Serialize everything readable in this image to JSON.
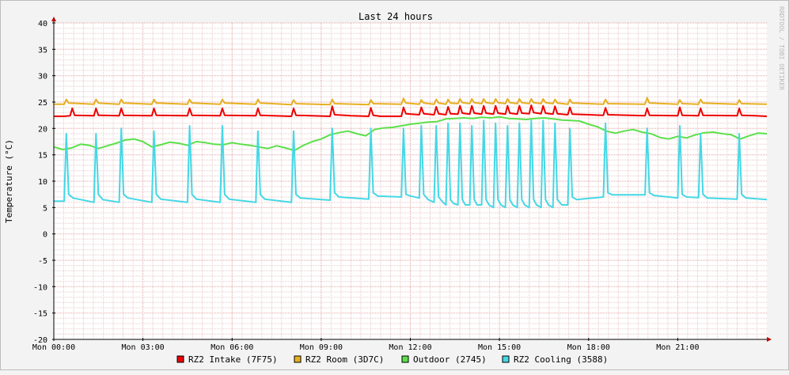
{
  "chart_data": {
    "type": "line",
    "title": "Last 24 hours",
    "ylabel": "Temperature (°C)",
    "xlabel": "",
    "watermark": "RRDTOOL / TOBI OETIKER",
    "ylim": [
      -20,
      40
    ],
    "yticks": [
      40,
      35,
      30,
      25,
      20,
      15,
      10,
      5,
      0,
      -5,
      -10,
      -15,
      -20
    ],
    "xlim": [
      0,
      24
    ],
    "xticks": [
      {
        "hour": 0,
        "label": "Mon 00:00"
      },
      {
        "hour": 3,
        "label": "Mon 03:00"
      },
      {
        "hour": 6,
        "label": "Mon 06:00"
      },
      {
        "hour": 9,
        "label": "Mon 09:00"
      },
      {
        "hour": 12,
        "label": "Mon 12:00"
      },
      {
        "hour": 15,
        "label": "Mon 15:00"
      },
      {
        "hour": 18,
        "label": "Mon 18:00"
      },
      {
        "hour": 21,
        "label": "Mon 21:00"
      }
    ],
    "grid": true,
    "legend_position": "bottom",
    "colors": {
      "background": "#f3f3f3",
      "plot": "#ffffff",
      "minor_grid": "#e8c8c8",
      "major_grid": "#e3a0a0",
      "axis": "#000000",
      "arrow": "#c00000",
      "text": "#000000",
      "watermark": "#b8b8b8"
    },
    "series": [
      {
        "name": "RZ2 Intake (7F75)",
        "color": "#ee0000",
        "x": [
          0,
          0.35,
          0.55,
          0.62,
          0.7,
          1.35,
          1.42,
          1.5,
          2.2,
          2.27,
          2.35,
          3.3,
          3.37,
          3.45,
          4.5,
          4.57,
          4.65,
          5.6,
          5.67,
          5.75,
          6.8,
          6.87,
          6.95,
          8.0,
          8.07,
          8.15,
          9.3,
          9.37,
          9.45,
          10.0,
          10.6,
          10.67,
          10.75,
          11.0,
          11.7,
          11.77,
          11.85,
          12.3,
          12.37,
          12.45,
          12.8,
          12.87,
          12.95,
          13.2,
          13.27,
          13.35,
          13.6,
          13.67,
          13.75,
          14.0,
          14.07,
          14.15,
          14.4,
          14.47,
          14.55,
          14.8,
          14.87,
          14.95,
          15.2,
          15.27,
          15.35,
          15.6,
          15.67,
          15.75,
          16.0,
          16.07,
          16.15,
          16.4,
          16.47,
          16.55,
          16.8,
          16.87,
          16.95,
          17.3,
          17.37,
          17.45,
          18.5,
          18.57,
          18.65,
          19.9,
          19.97,
          20.05,
          21.0,
          21.07,
          21.15,
          21.7,
          21.77,
          21.85,
          23.0,
          23.07,
          23.15,
          23.6,
          24.0
        ],
        "y": [
          22.3,
          22.3,
          22.4,
          23.8,
          22.5,
          22.4,
          23.8,
          22.5,
          22.4,
          23.8,
          22.5,
          22.4,
          23.8,
          22.5,
          22.4,
          23.8,
          22.5,
          22.4,
          23.8,
          22.5,
          22.4,
          23.8,
          22.5,
          22.3,
          23.8,
          22.5,
          22.3,
          24.2,
          22.6,
          22.4,
          22.3,
          23.9,
          22.5,
          22.3,
          22.3,
          24.0,
          22.8,
          22.6,
          24.0,
          22.8,
          22.6,
          24.1,
          22.8,
          22.6,
          24.1,
          22.8,
          22.7,
          24.3,
          22.9,
          22.7,
          24.3,
          22.9,
          22.7,
          24.3,
          22.9,
          22.7,
          24.3,
          22.9,
          22.7,
          24.3,
          22.9,
          22.7,
          24.3,
          22.9,
          22.8,
          24.4,
          23.0,
          22.8,
          24.3,
          22.9,
          22.7,
          24.2,
          22.8,
          22.6,
          24.0,
          22.7,
          22.5,
          23.9,
          22.6,
          22.4,
          23.8,
          22.5,
          22.4,
          24.0,
          22.5,
          22.4,
          23.8,
          22.5,
          22.4,
          23.8,
          22.5,
          22.4,
          22.3
        ]
      },
      {
        "name": "RZ2 Room (3D7C)",
        "color": "#e6b020",
        "x": [
          0,
          0.35,
          0.42,
          0.5,
          1.35,
          1.42,
          1.5,
          2.2,
          2.27,
          2.35,
          3.3,
          3.37,
          3.45,
          4.5,
          4.57,
          4.65,
          5.6,
          5.67,
          5.75,
          6.8,
          6.87,
          6.95,
          8.0,
          8.07,
          8.15,
          9.3,
          9.37,
          9.45,
          10.6,
          10.67,
          10.75,
          11.7,
          11.77,
          11.85,
          12.3,
          12.37,
          12.45,
          12.8,
          12.87,
          12.95,
          13.2,
          13.27,
          13.35,
          13.6,
          13.67,
          13.75,
          14.0,
          14.07,
          14.15,
          14.4,
          14.47,
          14.55,
          14.8,
          14.87,
          14.95,
          15.2,
          15.27,
          15.35,
          15.6,
          15.67,
          15.75,
          16.0,
          16.07,
          16.15,
          16.4,
          16.47,
          16.55,
          16.8,
          16.87,
          16.95,
          17.3,
          17.37,
          17.45,
          18.5,
          18.57,
          18.65,
          19.9,
          19.97,
          20.05,
          21.0,
          21.07,
          21.15,
          21.7,
          21.77,
          21.85,
          23.0,
          23.07,
          23.15,
          24.0
        ],
        "y": [
          24.6,
          24.6,
          25.5,
          24.8,
          24.6,
          25.5,
          24.8,
          24.6,
          25.5,
          24.8,
          24.6,
          25.5,
          24.8,
          24.6,
          25.5,
          24.8,
          24.6,
          25.5,
          24.8,
          24.6,
          25.5,
          24.8,
          24.5,
          25.4,
          24.7,
          24.5,
          25.5,
          24.7,
          24.5,
          25.4,
          24.7,
          24.6,
          25.7,
          24.8,
          24.6,
          25.4,
          24.8,
          24.6,
          25.5,
          24.8,
          24.6,
          25.5,
          24.8,
          24.7,
          25.6,
          24.9,
          24.7,
          25.6,
          24.9,
          24.7,
          25.6,
          24.9,
          24.7,
          25.6,
          24.9,
          24.7,
          25.6,
          24.9,
          24.7,
          25.6,
          24.9,
          24.7,
          25.6,
          24.9,
          24.7,
          25.6,
          24.9,
          24.7,
          25.5,
          24.8,
          24.6,
          25.5,
          24.8,
          24.6,
          25.5,
          24.7,
          24.6,
          25.8,
          24.8,
          24.6,
          25.4,
          24.7,
          24.6,
          25.5,
          24.8,
          24.6,
          25.4,
          24.7,
          24.6
        ]
      },
      {
        "name": "Outdoor (2745)",
        "color": "#5ce04a",
        "x": [
          0,
          0.3,
          0.6,
          0.9,
          1.2,
          1.5,
          1.8,
          2.1,
          2.4,
          2.7,
          3.0,
          3.3,
          3.6,
          3.9,
          4.2,
          4.5,
          4.8,
          5.1,
          5.4,
          5.7,
          6.0,
          6.3,
          6.6,
          6.9,
          7.2,
          7.5,
          7.8,
          8.1,
          8.4,
          8.7,
          9.0,
          9.3,
          9.6,
          9.9,
          10.2,
          10.5,
          10.8,
          11.1,
          11.4,
          11.7,
          12.0,
          12.3,
          12.6,
          12.9,
          13.2,
          13.5,
          13.8,
          14.1,
          14.4,
          14.7,
          15.0,
          15.3,
          15.6,
          15.9,
          16.2,
          16.5,
          16.8,
          17.1,
          17.4,
          17.7,
          18.0,
          18.3,
          18.6,
          18.9,
          19.2,
          19.5,
          19.8,
          20.1,
          20.4,
          20.7,
          21.0,
          21.3,
          21.6,
          21.9,
          22.2,
          22.5,
          22.8,
          23.1,
          23.4,
          23.7,
          24.0
        ],
        "y": [
          16.5,
          16.0,
          16.3,
          17.0,
          16.8,
          16.2,
          16.7,
          17.2,
          17.8,
          18.0,
          17.5,
          16.5,
          16.9,
          17.4,
          17.2,
          16.8,
          17.5,
          17.3,
          17.0,
          16.9,
          17.3,
          17.0,
          16.8,
          16.5,
          16.2,
          16.7,
          16.3,
          15.8,
          16.8,
          17.5,
          18.0,
          18.8,
          19.2,
          19.5,
          19.0,
          18.6,
          19.8,
          20.1,
          20.2,
          20.5,
          20.8,
          21.0,
          21.2,
          21.3,
          21.8,
          21.9,
          22.0,
          21.9,
          22.1,
          22.0,
          22.2,
          21.9,
          21.8,
          21.7,
          21.9,
          22.0,
          21.8,
          21.6,
          21.5,
          21.4,
          20.8,
          20.3,
          19.5,
          19.1,
          19.5,
          19.8,
          19.3,
          19.0,
          18.3,
          18.0,
          18.5,
          18.2,
          18.8,
          19.2,
          19.3,
          19.0,
          18.8,
          18.0,
          18.6,
          19.1,
          19.0
        ]
      },
      {
        "name": "RZ2 Cooling (3588)",
        "color": "#44d8e6",
        "x": [
          0,
          0.35,
          0.42,
          0.5,
          0.65,
          1.35,
          1.42,
          1.5,
          1.65,
          2.2,
          2.27,
          2.35,
          2.5,
          3.3,
          3.37,
          3.45,
          3.6,
          4.5,
          4.57,
          4.65,
          4.8,
          5.6,
          5.67,
          5.75,
          5.9,
          6.8,
          6.87,
          6.95,
          7.1,
          8.0,
          8.07,
          8.15,
          8.3,
          9.3,
          9.37,
          9.45,
          9.6,
          10.6,
          10.67,
          10.75,
          10.9,
          11.7,
          11.77,
          11.85,
          12.0,
          12.3,
          12.37,
          12.45,
          12.6,
          12.8,
          12.87,
          12.95,
          13.1,
          13.2,
          13.27,
          13.35,
          13.45,
          13.6,
          13.67,
          13.75,
          13.85,
          14.0,
          14.07,
          14.15,
          14.25,
          14.4,
          14.47,
          14.55,
          14.65,
          14.8,
          14.87,
          14.95,
          15.05,
          15.2,
          15.27,
          15.35,
          15.45,
          15.6,
          15.67,
          15.75,
          15.85,
          16.0,
          16.07,
          16.15,
          16.25,
          16.4,
          16.47,
          16.55,
          16.65,
          16.8,
          16.87,
          16.95,
          17.1,
          17.3,
          17.37,
          17.45,
          17.6,
          18.5,
          18.57,
          18.65,
          18.8,
          19.9,
          19.97,
          20.05,
          20.2,
          21.0,
          21.07,
          21.15,
          21.3,
          21.7,
          21.77,
          21.85,
          22.0,
          23.0,
          23.07,
          23.15,
          23.3,
          24.0
        ],
        "y": [
          6.2,
          6.2,
          19.0,
          7.5,
          6.8,
          6.0,
          19.0,
          7.5,
          6.5,
          6.0,
          20.0,
          7.5,
          6.8,
          6.0,
          19.5,
          7.5,
          6.6,
          6.0,
          20.5,
          7.5,
          6.6,
          6.0,
          20.5,
          7.5,
          6.6,
          6.0,
          19.5,
          7.5,
          6.6,
          6.0,
          19.5,
          7.5,
          6.8,
          6.4,
          20.0,
          7.8,
          7.0,
          6.6,
          20.0,
          7.8,
          7.2,
          7.0,
          20.0,
          7.5,
          7.2,
          6.8,
          20.5,
          7.5,
          6.5,
          6.0,
          20.5,
          7.0,
          6.0,
          5.5,
          21.0,
          6.5,
          5.8,
          5.5,
          21.0,
          6.5,
          5.5,
          5.5,
          20.5,
          6.5,
          5.5,
          5.5,
          21.5,
          6.5,
          5.5,
          5.0,
          21.0,
          6.5,
          5.5,
          5.0,
          20.5,
          6.5,
          5.5,
          5.0,
          21.0,
          6.5,
          5.5,
          5.0,
          21.5,
          6.5,
          5.5,
          5.0,
          21.5,
          6.5,
          5.5,
          5.0,
          21.0,
          6.5,
          5.5,
          5.5,
          20.0,
          7.0,
          6.5,
          7.0,
          21.0,
          7.8,
          7.4,
          7.4,
          20.0,
          7.8,
          7.3,
          6.8,
          20.5,
          7.5,
          7.0,
          6.9,
          19.0,
          7.5,
          6.8,
          6.6,
          19.0,
          7.5,
          6.8,
          6.5
        ]
      }
    ]
  }
}
